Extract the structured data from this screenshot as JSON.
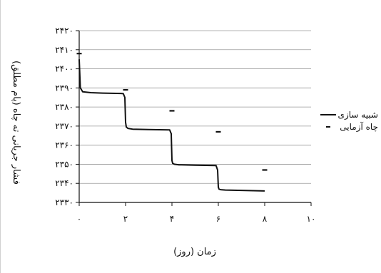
{
  "chart_data": {
    "type": "line",
    "title": "",
    "xlabel": "زمان (روز)",
    "ylabel": "فشار جریانی ته چاه (پام مطلق)",
    "xlim": [
      0,
      10
    ],
    "ylim": [
      2330,
      2420
    ],
    "x_ticks": [
      0,
      2,
      4,
      6,
      8,
      10
    ],
    "x_tick_labels": [
      "۰",
      "۲",
      "۴",
      "۶",
      "۸",
      "۱۰"
    ],
    "y_ticks": [
      2330,
      2340,
      2350,
      2360,
      2370,
      2380,
      2390,
      2400,
      2410,
      2420
    ],
    "y_tick_labels": [
      "۲۳۳۰",
      "۲۳۴۰",
      "۲۳۵۰",
      "۲۳۶۰",
      "۲۳۷۰",
      "۲۳۸۰",
      "۲۳۹۰",
      "۲۴۰۰",
      "۲۴۱۰",
      "۲۴۲۰"
    ],
    "grid": "horizontal",
    "legend_position": "right",
    "series": [
      {
        "name": "شبیه سازی",
        "style": "line",
        "color": "#111111",
        "x": [
          0,
          0.05,
          0.15,
          0.5,
          1.0,
          1.8,
          1.9,
          1.97,
          2.0,
          2.03,
          2.1,
          2.3,
          3.0,
          3.9,
          3.97,
          4.0,
          4.03,
          4.1,
          4.3,
          5.0,
          5.9,
          5.97,
          6.0,
          6.03,
          6.1,
          6.3,
          7.0,
          8.0
        ],
        "y": [
          2405,
          2390,
          2388,
          2387.5,
          2387.3,
          2387.1,
          2387,
          2385,
          2372,
          2369.5,
          2368.8,
          2368.4,
          2368.2,
          2368,
          2366,
          2352,
          2350.5,
          2350,
          2349.7,
          2349.5,
          2349.3,
          2347,
          2338,
          2337,
          2336.7,
          2336.5,
          2336.3,
          2336
        ]
      },
      {
        "name": "چاه آزمایی",
        "style": "marker",
        "color": "#111111",
        "x": [
          0,
          2,
          4,
          6,
          8
        ],
        "y": [
          2408,
          2389,
          2378,
          2367,
          2347
        ]
      }
    ]
  }
}
